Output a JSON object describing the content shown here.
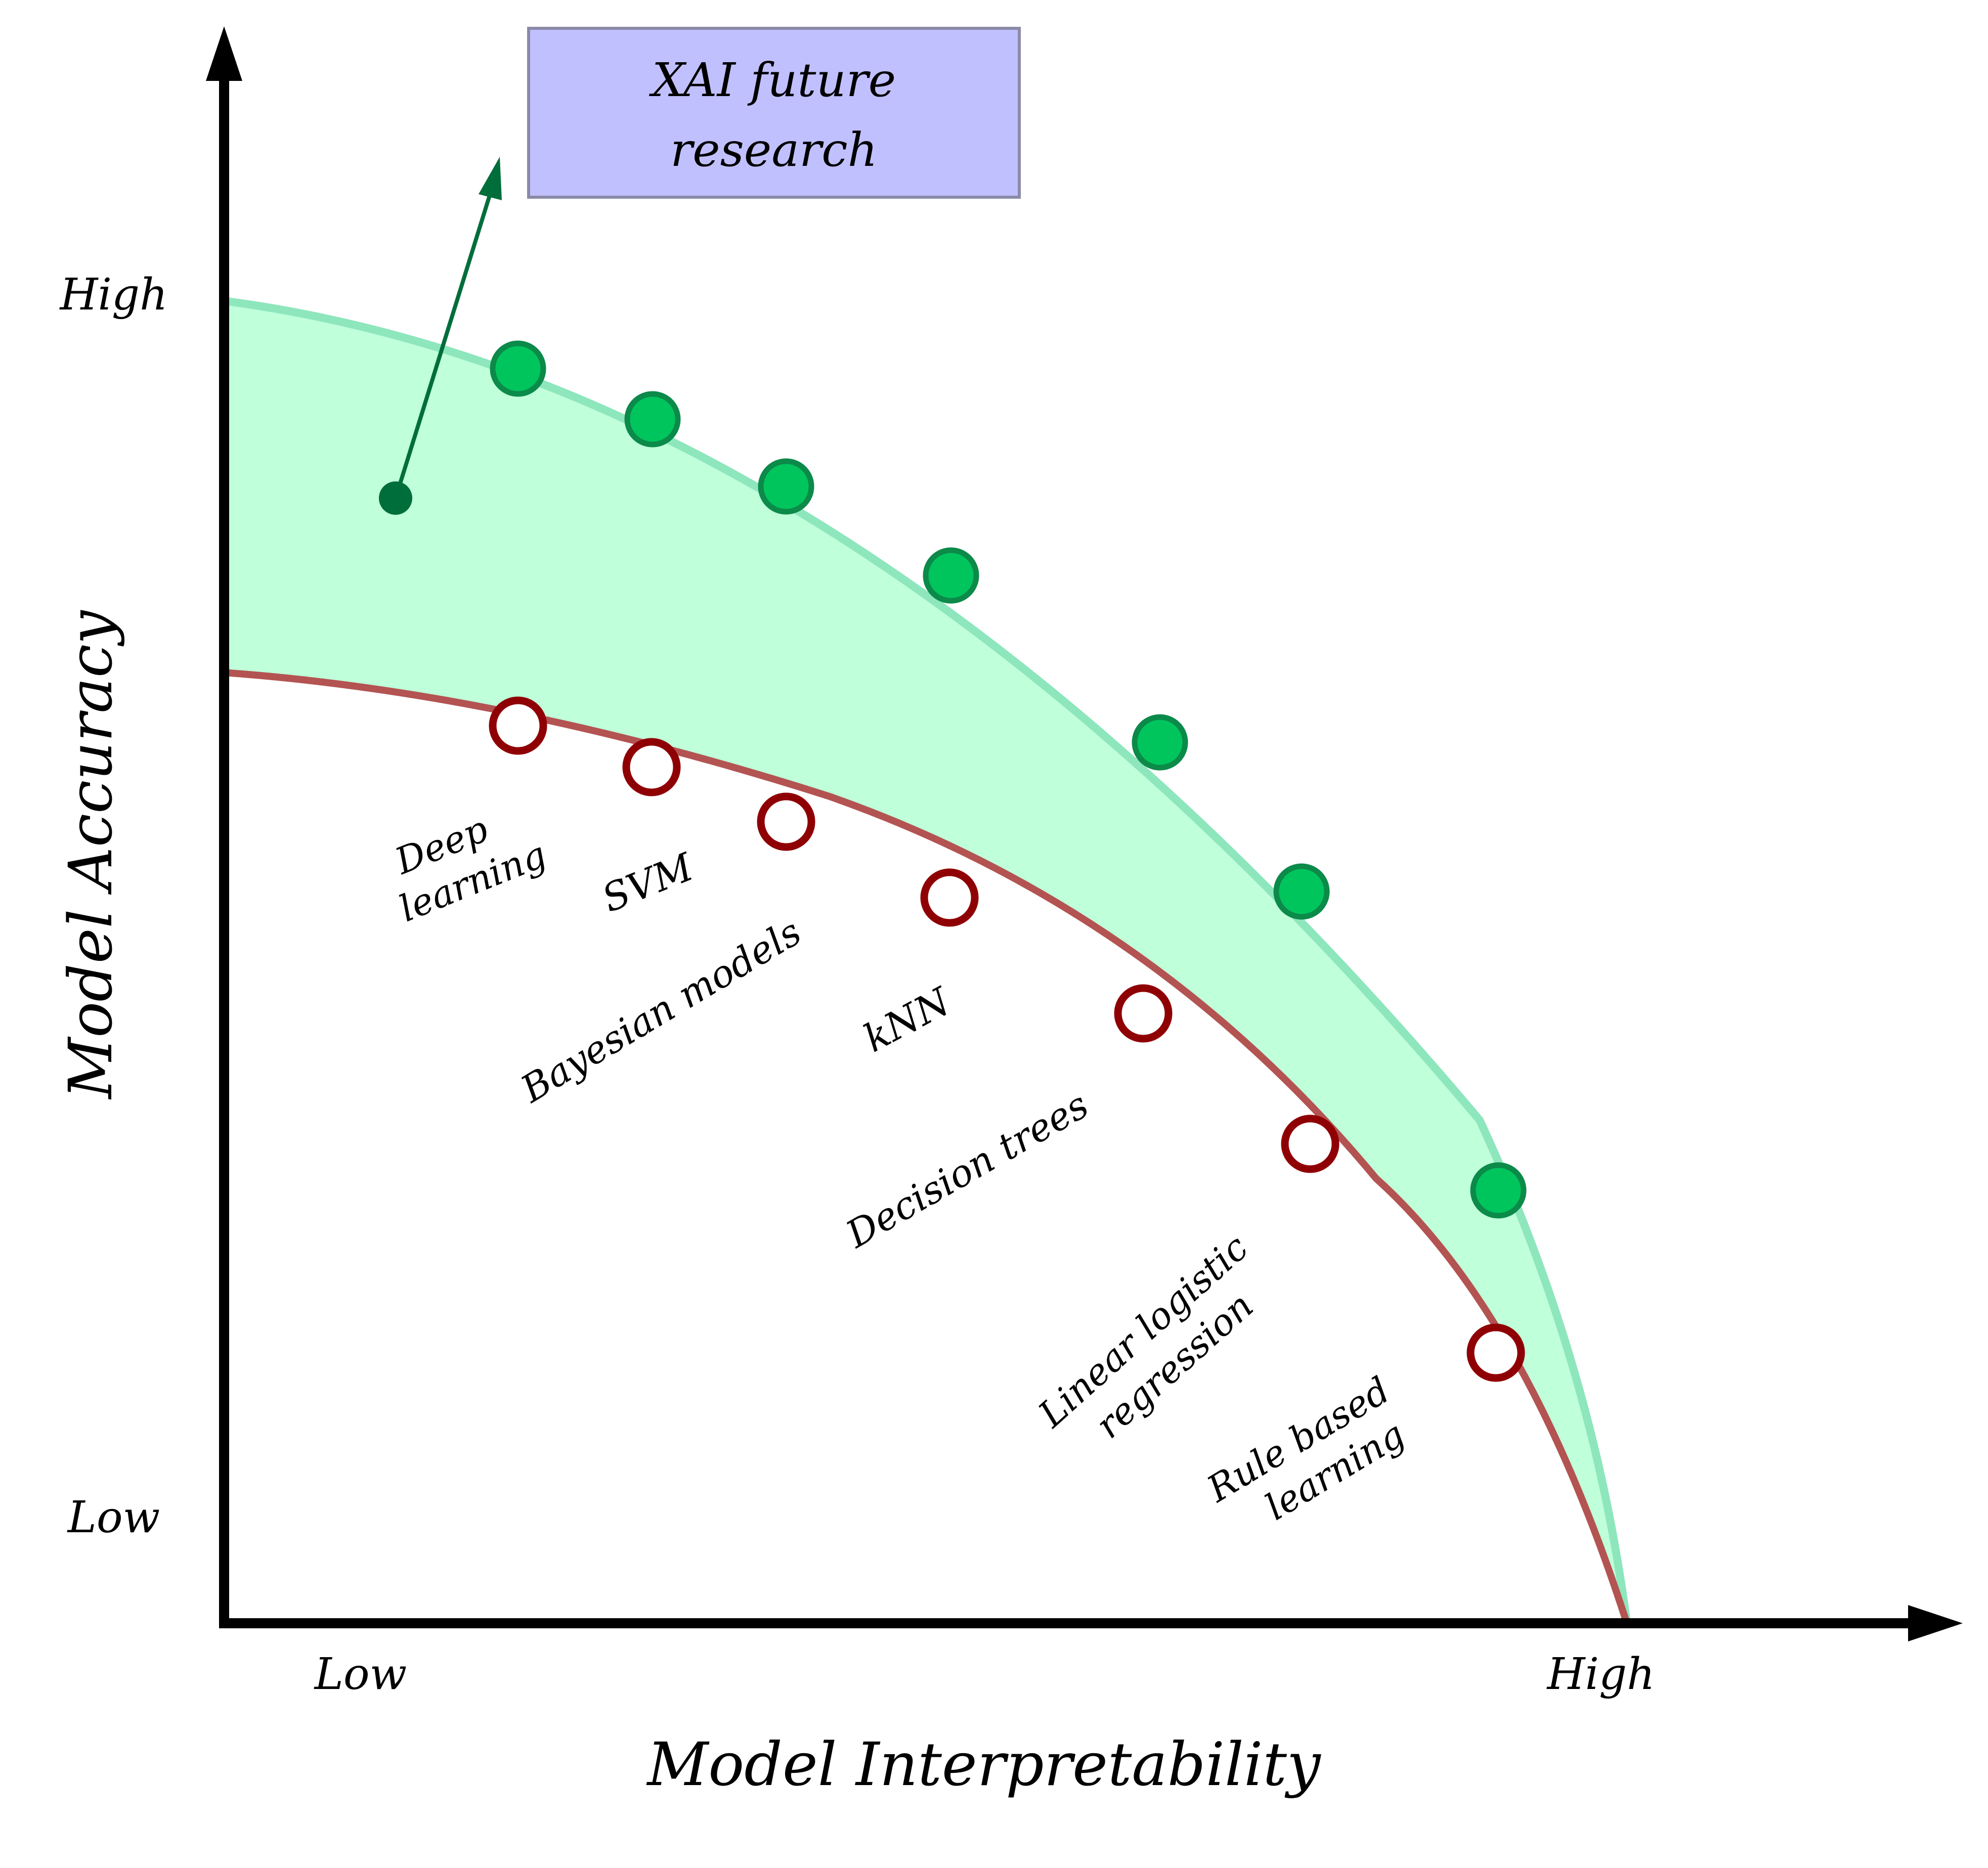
{
  "axes": {
    "x_label": "Model Interpretability",
    "y_label": "Model Accuracy",
    "x_low": "Low",
    "x_high": "High",
    "y_low": "Low",
    "y_high": "High"
  },
  "callout": {
    "line1": "XAI future",
    "line2": "research"
  },
  "models": [
    {
      "lines": [
        "Deep",
        "learning"
      ]
    },
    {
      "lines": [
        "SVM"
      ]
    },
    {
      "lines": [
        "Bayesian models"
      ]
    },
    {
      "lines": [
        "kNN"
      ]
    },
    {
      "lines": [
        "Decision trees"
      ]
    },
    {
      "lines": [
        "Linear logistic",
        "regression"
      ]
    },
    {
      "lines": [
        "Rule based",
        "learning"
      ]
    }
  ],
  "colors": {
    "band_fill": "#bfffd9",
    "future_curve": "#8ee6bd",
    "current_curve": "#b35452",
    "green_dot": "#00c55d",
    "green_dot_edge": "#0b8a49",
    "red_ring": "#8f0004",
    "arrow": "#006e3a",
    "callout_fill": "#c1c0ff",
    "callout_edge": "#8a8aa8"
  },
  "icons": {
    "future_point": "filled-circle",
    "current_point": "hollow-circle",
    "trend": "arrow"
  }
}
